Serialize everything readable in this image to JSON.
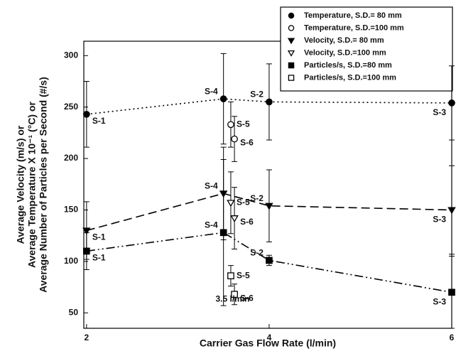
{
  "chart_data": {
    "type": "scatter",
    "x_label": "Carrier Gas Flow Rate (l/min)",
    "y_label": [
      "Average Velocity (m/s) or",
      "Average Temperature X 10⁻¹ (°C) or",
      "Average Number of Particles per Second (#/s)"
    ],
    "annotation": {
      "text": "3.5 l/min",
      "x": 3.6,
      "y": 63
    },
    "xlim": [
      1.97,
      6.0
    ],
    "xticks": [
      2,
      4,
      6
    ],
    "ylim": [
      35,
      314
    ],
    "yticks": [
      50,
      100,
      150,
      200,
      250,
      300
    ],
    "series": [
      {
        "name": "Temperature, S.D.= 80 mm",
        "color": "#000000",
        "marker": "circle",
        "filled": true,
        "line_style": "dotted",
        "x": [
          2,
          3.5,
          4,
          6
        ],
        "values": [
          243,
          258,
          255,
          254
        ],
        "errors": [
          32,
          44,
          37,
          36
        ],
        "labels": [
          "S-1",
          "S-4",
          "S-2",
          "S-3"
        ]
      },
      {
        "name": "Temperature, S.D.=100 mm",
        "color": "#000000",
        "marker": "circle",
        "filled": false,
        "line_style": "none",
        "x": [
          3.58,
          3.62
        ],
        "values": [
          233,
          219
        ],
        "errors": [
          22,
          22
        ],
        "labels": [
          "S-5",
          "S-6"
        ]
      },
      {
        "name": "Velocity, S.D.= 80 mm",
        "color": "#000000",
        "marker": "triangle",
        "filled": true,
        "line_style": "dashed",
        "x": [
          2,
          3.5,
          4,
          6
        ],
        "values": [
          130,
          166,
          154,
          150
        ],
        "errors": [
          28,
          45,
          35,
          43
        ],
        "labels": [
          "S-1",
          "S-4",
          "S-2",
          "S-3"
        ]
      },
      {
        "name": "Velocity, S.D.=100 mm",
        "color": "#000000",
        "marker": "triangle",
        "filled": false,
        "line_style": "none",
        "x": [
          3.58,
          3.62
        ],
        "values": [
          157,
          142
        ],
        "errors": [
          30,
          30
        ],
        "labels": [
          "S-5",
          "S-6"
        ]
      },
      {
        "name": "Particles/s, S.D.=80 mm",
        "color": "#000000",
        "marker": "square",
        "filled": true,
        "line_style": "dashdotdot",
        "x": [
          2,
          3.5,
          4,
          6
        ],
        "values": [
          110,
          128,
          101,
          70
        ],
        "errors": [
          18,
          71,
          5,
          35
        ],
        "labels": [
          "S-1",
          "S-4",
          "S-2",
          "S-3"
        ]
      },
      {
        "name": "Particles/s, S.D.=100 mm",
        "color": "#000000",
        "marker": "square",
        "filled": false,
        "line_style": "none",
        "x": [
          3.58,
          3.62
        ],
        "values": [
          86,
          68
        ],
        "errors": [
          10,
          10
        ],
        "labels": [
          "S-5",
          "S-6"
        ]
      }
    ]
  }
}
